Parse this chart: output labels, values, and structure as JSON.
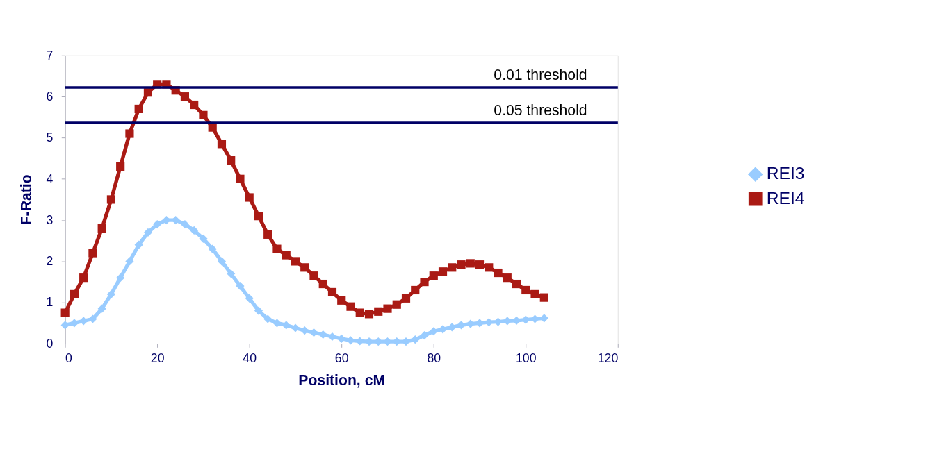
{
  "chart_data": {
    "type": "line",
    "xlabel": "Position, cM",
    "ylabel": "F-Ratio",
    "x": [
      0,
      2,
      4,
      6,
      8,
      10,
      12,
      14,
      16,
      18,
      20,
      22,
      24,
      26,
      28,
      30,
      32,
      34,
      36,
      38,
      40,
      42,
      44,
      46,
      48,
      50,
      52,
      54,
      56,
      58,
      60,
      62,
      64,
      66,
      68,
      70,
      72,
      74,
      76,
      78,
      80,
      82,
      84,
      86,
      88,
      90,
      92,
      94,
      96,
      98,
      100,
      102,
      104
    ],
    "series": [
      {
        "name": "REI3",
        "color": "#99ccff",
        "marker": "diamond",
        "values": [
          0.45,
          0.5,
          0.55,
          0.6,
          0.85,
          1.2,
          1.6,
          2.0,
          2.4,
          2.7,
          2.9,
          3.0,
          3.0,
          2.9,
          2.75,
          2.55,
          2.3,
          2.0,
          1.7,
          1.4,
          1.1,
          0.8,
          0.6,
          0.5,
          0.45,
          0.38,
          0.32,
          0.27,
          0.22,
          0.17,
          0.12,
          0.08,
          0.06,
          0.05,
          0.05,
          0.05,
          0.05,
          0.05,
          0.1,
          0.2,
          0.3,
          0.35,
          0.4,
          0.45,
          0.48,
          0.5,
          0.52,
          0.53,
          0.55,
          0.56,
          0.58,
          0.6,
          0.62
        ]
      },
      {
        "name": "REI4",
        "color": "#aa1a14",
        "marker": "square",
        "values": [
          0.75,
          1.2,
          1.6,
          2.2,
          2.8,
          3.5,
          4.3,
          5.1,
          5.7,
          6.1,
          6.3,
          6.3,
          6.15,
          6.0,
          5.8,
          5.55,
          5.25,
          4.85,
          4.45,
          4.0,
          3.55,
          3.1,
          2.65,
          2.3,
          2.15,
          2.0,
          1.85,
          1.65,
          1.45,
          1.25,
          1.05,
          0.9,
          0.75,
          0.72,
          0.78,
          0.85,
          0.95,
          1.1,
          1.3,
          1.5,
          1.65,
          1.75,
          1.85,
          1.92,
          1.95,
          1.92,
          1.85,
          1.72,
          1.6,
          1.45,
          1.3,
          1.2,
          1.12
        ]
      }
    ],
    "xlim": [
      0,
      120
    ],
    "xticks": [
      0,
      20,
      40,
      60,
      80,
      100,
      120
    ],
    "ylim": [
      0,
      7
    ],
    "yticks": [
      0,
      1,
      2,
      3,
      4,
      5,
      6,
      7
    ],
    "ref_lines": [
      {
        "axis": "y",
        "value": 6.22,
        "label": "0.01 threshold",
        "color": "#000066"
      },
      {
        "axis": "y",
        "value": 5.36,
        "label": "0.05 threshold",
        "color": "#000066"
      }
    ],
    "grid": false,
    "legend": "right"
  }
}
